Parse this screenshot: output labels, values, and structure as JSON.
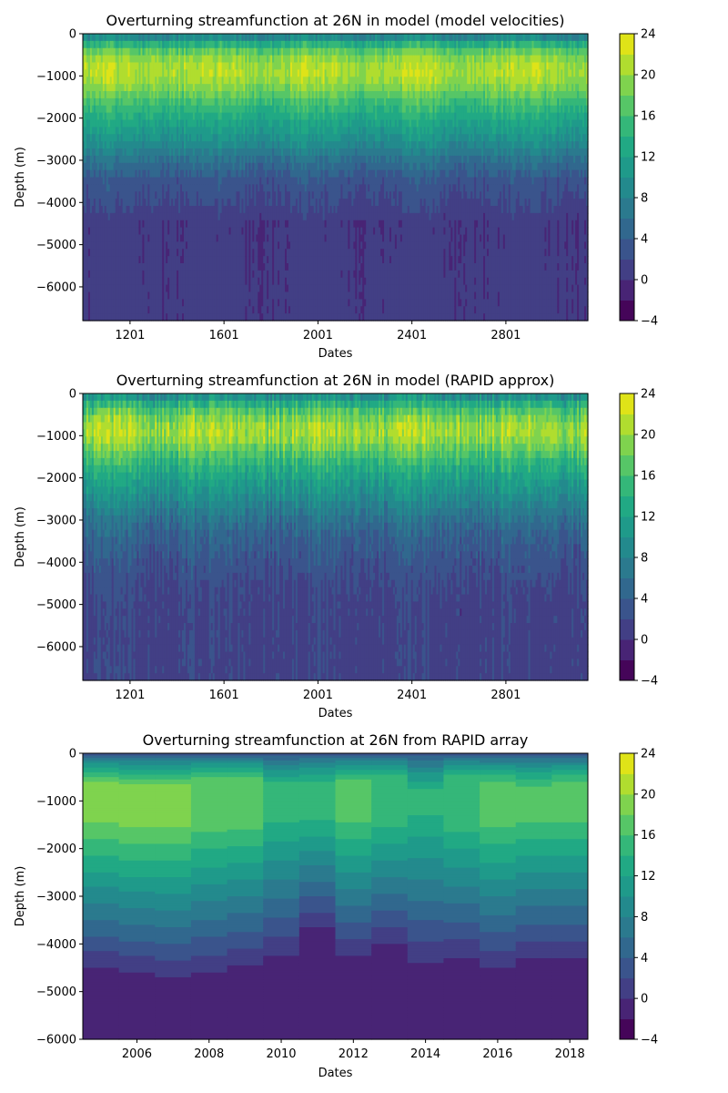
{
  "chart_data": [
    {
      "type": "heatmap",
      "title": "Overturning streamfunction at 26N in model (model velocities)",
      "xlabel": "Dates",
      "ylabel": "Depth (m)",
      "xlim": [
        1000,
        3150
      ],
      "ylim": [
        -6800,
        0
      ],
      "xticks": [
        1201,
        1601,
        2001,
        2401,
        2801
      ],
      "yticks": [
        0,
        -1000,
        -2000,
        -3000,
        -4000,
        -5000,
        -6000
      ],
      "colorbar": {
        "levels": [
          -4,
          -2,
          0,
          2,
          4,
          6,
          8,
          10,
          12,
          14,
          16,
          18,
          20,
          22,
          24
        ],
        "ticks": [
          -4,
          0,
          4,
          8,
          12,
          16,
          20,
          24
        ],
        "colormap": "viridis"
      },
      "mean_profile": {
        "depth": [
          0,
          -200,
          -500,
          -800,
          -1000,
          -1300,
          -1600,
          -2000,
          -2500,
          -3000,
          -3500,
          -4000,
          -4500,
          -5000,
          -5500,
          -6800
        ],
        "value": [
          6,
          13,
          19,
          21,
          21,
          19,
          16,
          13,
          10,
          6,
          3,
          2,
          0.5,
          0.5,
          0.5,
          0.5
        ]
      },
      "variability": "high-frequency",
      "noise_amplitude": 1.5
    },
    {
      "type": "heatmap",
      "title": "Overturning streamfunction at 26N in model (RAPID approx)",
      "xlabel": "Dates",
      "ylabel": "Depth (m)",
      "xlim": [
        1000,
        3150
      ],
      "ylim": [
        -6800,
        0
      ],
      "xticks": [
        1201,
        1601,
        2001,
        2401,
        2801
      ],
      "yticks": [
        0,
        -1000,
        -2000,
        -3000,
        -4000,
        -5000,
        -6000
      ],
      "colorbar": {
        "levels": [
          -4,
          -2,
          0,
          2,
          4,
          6,
          8,
          10,
          12,
          14,
          16,
          18,
          20,
          22,
          24
        ],
        "ticks": [
          -4,
          0,
          4,
          8,
          12,
          16,
          20,
          24
        ],
        "colormap": "viridis"
      },
      "mean_profile": {
        "depth": [
          0,
          -200,
          -500,
          -800,
          -1000,
          -1300,
          -1600,
          -2000,
          -2500,
          -3000,
          -3500,
          -4000,
          -4500,
          -5000,
          -5500,
          -6800
        ],
        "value": [
          8,
          13,
          18,
          20.5,
          20.5,
          18,
          15,
          12,
          9,
          6,
          4,
          3,
          2,
          1.5,
          1.5,
          1.5
        ]
      },
      "variability": "high-frequency",
      "noise_amplitude": 2.5
    },
    {
      "type": "heatmap",
      "title": "Overturning streamfunction at 26N from RAPID array",
      "xlabel": "Dates",
      "ylabel": "Depth (m)",
      "xlim": [
        2004.5,
        2018.5
      ],
      "ylim": [
        -6000,
        0
      ],
      "xticks": [
        2006,
        2008,
        2010,
        2012,
        2014,
        2016,
        2018
      ],
      "yticks": [
        0,
        -1000,
        -2000,
        -3000,
        -4000,
        -5000,
        -6000
      ],
      "colorbar": {
        "levels": [
          -4,
          -2,
          0,
          2,
          4,
          6,
          8,
          10,
          12,
          14,
          16,
          18,
          20,
          22,
          24
        ],
        "ticks": [
          -4,
          0,
          4,
          8,
          12,
          16,
          20,
          24
        ],
        "colormap": "viridis"
      },
      "years": [
        2005,
        2006,
        2007,
        2008,
        2009,
        2010,
        2011,
        2012,
        2013,
        2014,
        2015,
        2016,
        2017,
        2018
      ],
      "profile_depths": [
        0,
        -50,
        -100,
        -200,
        -300,
        -450,
        -650,
        -900,
        -1100,
        -1300,
        -1500,
        -1700,
        -1900,
        -2100,
        -2300,
        -2550,
        -2800,
        -3050,
        -3300,
        -3600,
        -3900,
        -4200,
        -4500,
        -4800,
        -6000
      ],
      "max_value": [
        19,
        19,
        19,
        17,
        17,
        15,
        15,
        17,
        15,
        15,
        15,
        17,
        17,
        17
      ],
      "max_depth_top": [
        -650,
        -700,
        -700,
        -550,
        -550,
        -700,
        -650,
        -600,
        -500,
        -850,
        -500,
        -650,
        -750,
        -650
      ],
      "max_depth_bottom": [
        -1300,
        -1400,
        -1350,
        -1450,
        -1400,
        -1250,
        -1250,
        -1300,
        -1350,
        -1100,
        -1450,
        -1350,
        -1250,
        -1250
      ],
      "zero_crossing_depth": [
        -4500,
        -4600,
        -4700,
        -4600,
        -4450,
        -4250,
        -3650,
        -4250,
        -4000,
        -4400,
        -4300,
        -4500,
        -4300,
        -4300
      ]
    }
  ]
}
